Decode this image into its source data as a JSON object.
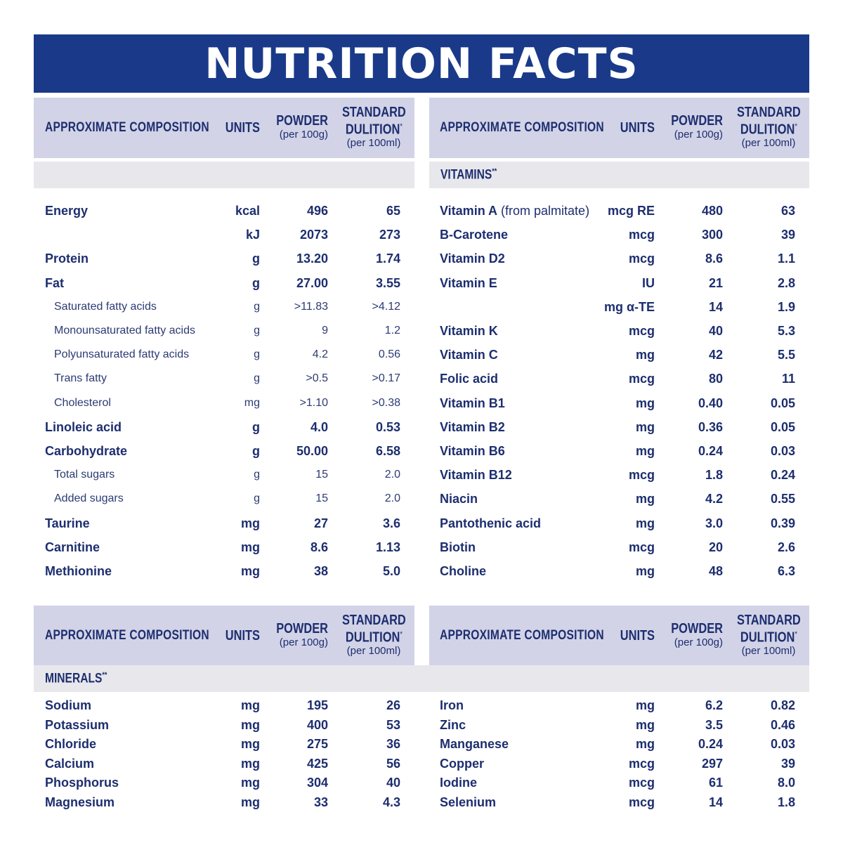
{
  "title": "NUTRITION FACTS",
  "header": {
    "composition": "APPROXIMATE COMPOSITION",
    "units": "UNITS",
    "powder": "POWDER",
    "powder_sub": "(per 100g)",
    "standard": "STANDARD",
    "dilution": "DULITION",
    "dilution_mark": "*",
    "dilution_sub": "(per 100ml)"
  },
  "sections": {
    "vitamins": "VITAMINS",
    "minerals": "MINERALS",
    "mark": "**"
  },
  "left_top": [
    {
      "name": "Energy",
      "unit": "kcal",
      "powder": "496",
      "dil": "65",
      "style": "b"
    },
    {
      "name": "",
      "unit": "kJ",
      "powder": "2073",
      "dil": "273",
      "style": "b"
    },
    {
      "name": "Protein",
      "unit": "g",
      "powder": "13.20",
      "dil": "1.74",
      "style": "b"
    },
    {
      "name": "Fat",
      "unit": "g",
      "powder": "27.00",
      "dil": "3.55",
      "style": "b"
    },
    {
      "name": "Saturated fatty acids",
      "unit": "g",
      "powder": ">11.83",
      "dil": ">4.12",
      "style": "s"
    },
    {
      "name": "Monounsaturated fatty acids",
      "unit": "g",
      "powder": "9",
      "dil": "1.2",
      "style": "s"
    },
    {
      "name": "Polyunsaturated fatty acids",
      "unit": "g",
      "powder": "4.2",
      "dil": "0.56",
      "style": "s"
    },
    {
      "name": "Trans fatty",
      "unit": "g",
      "powder": ">0.5",
      "dil": ">0.17",
      "style": "s"
    },
    {
      "name": "Cholesterol",
      "unit": "mg",
      "powder": ">1.10",
      "dil": ">0.38",
      "style": "s"
    },
    {
      "name": "Linoleic acid",
      "unit": "g",
      "powder": "4.0",
      "dil": "0.53",
      "style": "b"
    },
    {
      "name": "Carbohydrate",
      "unit": "g",
      "powder": "50.00",
      "dil": "6.58",
      "style": "b"
    },
    {
      "name": "Total sugars",
      "unit": "g",
      "powder": "15",
      "dil": "2.0",
      "style": "s"
    },
    {
      "name": "Added sugars",
      "unit": "g",
      "powder": "15",
      "dil": "2.0",
      "style": "s"
    },
    {
      "name": "Taurine",
      "unit": "mg",
      "powder": "27",
      "dil": "3.6",
      "style": "b"
    },
    {
      "name": "Carnitine",
      "unit": "mg",
      "powder": "8.6",
      "dil": "1.13",
      "style": "b"
    },
    {
      "name": "Methionine",
      "unit": "mg",
      "powder": "38",
      "dil": "5.0",
      "style": "b"
    }
  ],
  "right_top": [
    {
      "name": "Vitamin A",
      "extra": " (from palmitate)",
      "unit": "mcg RE",
      "powder": "480",
      "dil": "63",
      "style": "b"
    },
    {
      "name": "B-Carotene",
      "unit": "mcg",
      "powder": "300",
      "dil": "39",
      "style": "b"
    },
    {
      "name": "Vitamin D2",
      "unit": "mcg",
      "powder": "8.6",
      "dil": "1.1",
      "style": "b"
    },
    {
      "name": "Vitamin E",
      "unit": "IU",
      "powder": "21",
      "dil": "2.8",
      "style": "b"
    },
    {
      "name": "",
      "unit": "mg α-TE",
      "powder": "14",
      "dil": "1.9",
      "style": "b"
    },
    {
      "name": "Vitamin K",
      "unit": "mcg",
      "powder": "40",
      "dil": "5.3",
      "style": "b"
    },
    {
      "name": "Vitamin C",
      "unit": "mg",
      "powder": "42",
      "dil": "5.5",
      "style": "b"
    },
    {
      "name": "Folic acid",
      "unit": "mcg",
      "powder": "80",
      "dil": "11",
      "style": "b"
    },
    {
      "name": "Vitamin B1",
      "unit": "mg",
      "powder": "0.40",
      "dil": "0.05",
      "style": "b"
    },
    {
      "name": "Vitamin B2",
      "unit": "mg",
      "powder": "0.36",
      "dil": "0.05",
      "style": "b"
    },
    {
      "name": "Vitamin B6",
      "unit": "mg",
      "powder": "0.24",
      "dil": "0.03",
      "style": "b"
    },
    {
      "name": "Vitamin B12",
      "unit": "mcg",
      "powder": "1.8",
      "dil": "0.24",
      "style": "b"
    },
    {
      "name": "Niacin",
      "unit": "mg",
      "powder": "4.2",
      "dil": "0.55",
      "style": "b"
    },
    {
      "name": "Pantothenic acid",
      "unit": "mg",
      "powder": "3.0",
      "dil": "0.39",
      "style": "b"
    },
    {
      "name": "Biotin",
      "unit": "mcg",
      "powder": "20",
      "dil": "2.6",
      "style": "b"
    },
    {
      "name": "Choline",
      "unit": "mg",
      "powder": "48",
      "dil": "6.3",
      "style": "b"
    }
  ],
  "left_bottom": [
    {
      "name": "Sodium",
      "unit": "mg",
      "powder": "195",
      "dil": "26",
      "style": "b"
    },
    {
      "name": "Potassium",
      "unit": "mg",
      "powder": "400",
      "dil": "53",
      "style": "b"
    },
    {
      "name": "Chloride",
      "unit": "mg",
      "powder": "275",
      "dil": "36",
      "style": "b"
    },
    {
      "name": "Calcium",
      "unit": "mg",
      "powder": "425",
      "dil": "56",
      "style": "b"
    },
    {
      "name": "Phosphorus",
      "unit": "mg",
      "powder": "304",
      "dil": "40",
      "style": "b"
    },
    {
      "name": "Magnesium",
      "unit": "mg",
      "powder": "33",
      "dil": "4.3",
      "style": "b"
    }
  ],
  "right_bottom": [
    {
      "name": "Iron",
      "unit": "mg",
      "powder": "6.2",
      "dil": "0.82",
      "style": "b"
    },
    {
      "name": "Zinc",
      "unit": "mg",
      "powder": "3.5",
      "dil": "0.46",
      "style": "b"
    },
    {
      "name": "Manganese",
      "unit": "mg",
      "powder": "0.24",
      "dil": "0.03",
      "style": "b"
    },
    {
      "name": "Copper",
      "unit": "mcg",
      "powder": "297",
      "dil": "39",
      "style": "b"
    },
    {
      "name": "Iodine",
      "unit": "mcg",
      "powder": "61",
      "dil": "8.0",
      "style": "b"
    },
    {
      "name": "Selenium",
      "unit": "mcg",
      "powder": "14",
      "dil": "1.8",
      "style": "b"
    }
  ]
}
